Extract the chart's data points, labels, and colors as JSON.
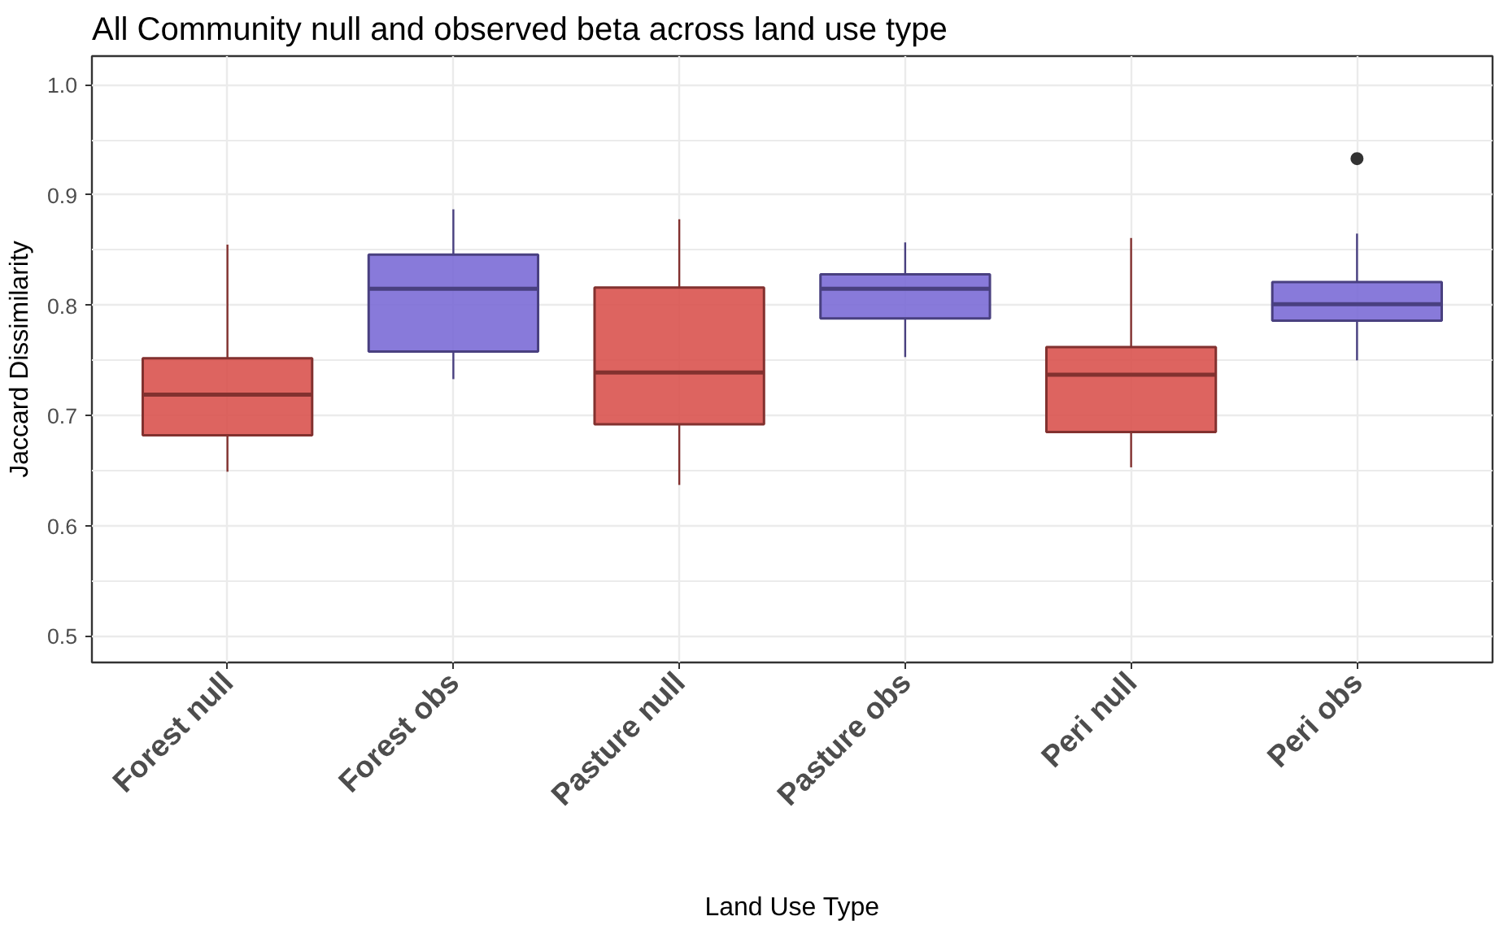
{
  "chart_data": {
    "type": "box",
    "title": "All Community null and observed beta across land use type",
    "xlabel": "Land Use Type",
    "ylabel": "Jaccard Dissimilarity",
    "categories": [
      "Forest null",
      "Forest obs",
      "Pasture null",
      "Pasture obs",
      "Peri null",
      "Peri obs"
    ],
    "colors": [
      "#d9534f",
      "#7b6bd6",
      "#d9534f",
      "#7b6bd6",
      "#d9534f",
      "#7b6bd6"
    ],
    "boxes": [
      {
        "low": 0.649,
        "q1": 0.682,
        "median": 0.719,
        "q3": 0.752,
        "high": 0.855
      },
      {
        "low": 0.733,
        "q1": 0.758,
        "median": 0.815,
        "q3": 0.846,
        "high": 0.887
      },
      {
        "low": 0.637,
        "q1": 0.692,
        "median": 0.739,
        "q3": 0.816,
        "high": 0.878
      },
      {
        "low": 0.753,
        "q1": 0.788,
        "median": 0.815,
        "q3": 0.828,
        "high": 0.857
      },
      {
        "low": 0.653,
        "q1": 0.685,
        "median": 0.737,
        "q3": 0.762,
        "high": 0.861
      },
      {
        "low": 0.75,
        "q1": 0.786,
        "median": 0.801,
        "q3": 0.821,
        "high": 0.865,
        "outliers": [
          0.933
        ]
      }
    ],
    "ylim": [
      0.476,
      1.026
    ],
    "yticks": [
      0.5,
      0.6,
      0.7,
      0.8,
      0.9,
      {
        "value": 1.0,
        "label": "1.0"
      }
    ],
    "grid": true
  }
}
